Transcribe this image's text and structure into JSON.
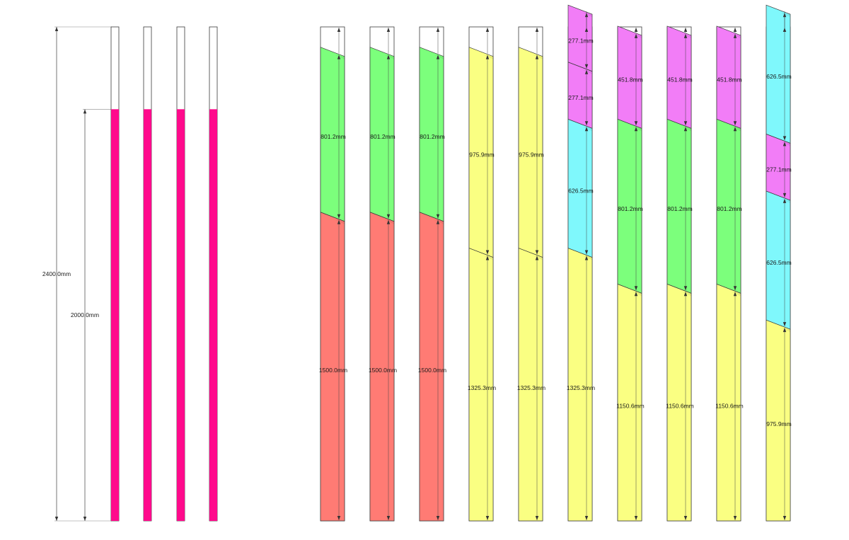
{
  "reference": {
    "total_height": {
      "value": 2400.0,
      "label": "2400.0mm"
    },
    "filled_height": {
      "value": 2000.0,
      "label": "2000.0mm"
    },
    "bar_count": 4,
    "fill_color": "#ff0a8c"
  },
  "colors": {
    "red": "#ff7b74",
    "green": "#7cff7c",
    "yellow": "#faff82",
    "magenta": "#f27df7",
    "cyan": "#7ff8fc",
    "outline": "#3a3a3a",
    "dimension": "#555555"
  },
  "columns": [
    {
      "segments": [
        {
          "length": 1500.0,
          "label": "1500.0mm",
          "color": "red"
        },
        {
          "length": 801.2,
          "label": "801.2mm",
          "color": "green"
        }
      ]
    },
    {
      "segments": [
        {
          "length": 1500.0,
          "label": "1500.0mm",
          "color": "red"
        },
        {
          "length": 801.2,
          "label": "801.2mm",
          "color": "green"
        }
      ]
    },
    {
      "segments": [
        {
          "length": 1500.0,
          "label": "1500.0mm",
          "color": "red"
        },
        {
          "length": 801.2,
          "label": "801.2mm",
          "color": "green"
        }
      ]
    },
    {
      "segments": [
        {
          "length": 1325.3,
          "label": "1325.3mm",
          "color": "yellow"
        },
        {
          "length": 975.9,
          "label": "975.9mm",
          "color": "yellow"
        }
      ]
    },
    {
      "segments": [
        {
          "length": 1325.3,
          "label": "1325.3mm",
          "color": "yellow"
        },
        {
          "length": 975.9,
          "label": "975.9mm",
          "color": "yellow"
        }
      ]
    },
    {
      "segments": [
        {
          "length": 1325.3,
          "label": "1325.3mm",
          "color": "yellow"
        },
        {
          "length": 626.5,
          "label": "626.5mm",
          "color": "cyan"
        },
        {
          "length": 277.1,
          "label": "277.1mm",
          "color": "magenta"
        },
        {
          "length": 277.1,
          "label": "277.1mm",
          "color": "magenta"
        }
      ]
    },
    {
      "segments": [
        {
          "length": 1150.6,
          "label": "1150.6mm",
          "color": "yellow"
        },
        {
          "length": 801.2,
          "label": "801.2mm",
          "color": "green"
        },
        {
          "length": 451.8,
          "label": "451.8mm",
          "color": "magenta"
        }
      ]
    },
    {
      "segments": [
        {
          "length": 1150.6,
          "label": "1150.6mm",
          "color": "yellow"
        },
        {
          "length": 801.2,
          "label": "801.2mm",
          "color": "green"
        },
        {
          "length": 451.8,
          "label": "451.8mm",
          "color": "magenta"
        }
      ]
    },
    {
      "segments": [
        {
          "length": 1150.6,
          "label": "1150.6mm",
          "color": "yellow"
        },
        {
          "length": 801.2,
          "label": "801.2mm",
          "color": "green"
        },
        {
          "length": 451.8,
          "label": "451.8mm",
          "color": "magenta"
        }
      ]
    },
    {
      "segments": [
        {
          "length": 975.9,
          "label": "975.9mm",
          "color": "yellow"
        },
        {
          "length": 626.5,
          "label": "626.5mm",
          "color": "cyan"
        },
        {
          "length": 277.1,
          "label": "277.1mm",
          "color": "magenta"
        },
        {
          "length": 626.5,
          "label": "626.5mm",
          "color": "cyan"
        }
      ]
    }
  ]
}
